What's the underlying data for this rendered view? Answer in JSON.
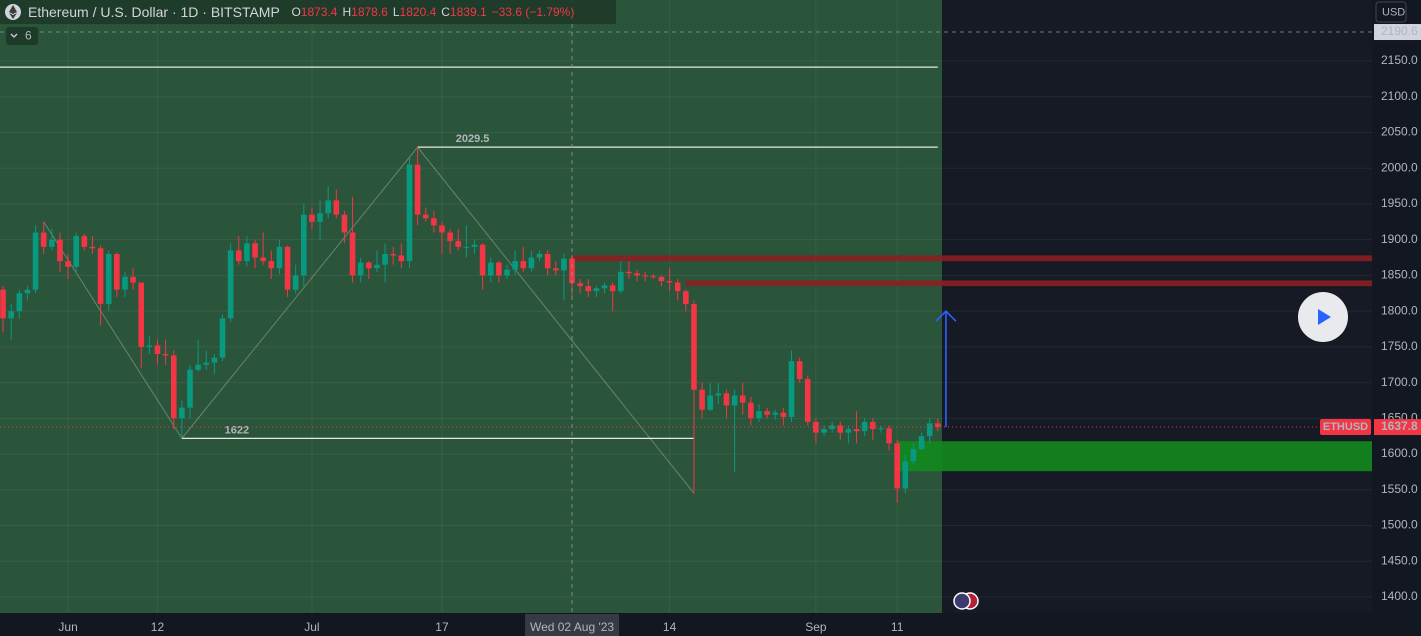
{
  "chart_data": {
    "type": "candlestick",
    "title": "Ethereum / U.S. Dollar · 1D · BITSTAMP",
    "ohlc_labels": [
      "O",
      "H",
      "L",
      "C"
    ],
    "change": "−33.6 (−1.79%)",
    "indicators": 6,
    "currency": "USD",
    "symbol_tag": "ETHUSD",
    "up_color": "#089981",
    "down_color": "#f23645",
    "grid": true,
    "xlim": [
      "2023-05-23T15:00",
      "2023-11-08T10:00"
    ],
    "ylim": [
      1377.6,
      2235.4
    ],
    "yticks": [
      {
        "value": 1400,
        "label": "1400.0"
      },
      {
        "value": 1450,
        "label": "1450.0"
      },
      {
        "value": 1500,
        "label": "1500.0"
      },
      {
        "value": 1550,
        "label": "1550.0"
      },
      {
        "value": 1600,
        "label": "1600.0"
      },
      {
        "value": 1650,
        "label": "1650.0"
      },
      {
        "value": 1700,
        "label": "1700.0"
      },
      {
        "value": 1750,
        "label": "1750.0"
      },
      {
        "value": 1800,
        "label": "1800.0"
      },
      {
        "value": 1850,
        "label": "1850.0"
      },
      {
        "value": 1900,
        "label": "1900.0"
      },
      {
        "value": 1950,
        "label": "1950.0"
      },
      {
        "value": 2000,
        "label": "2000.0"
      },
      {
        "value": 2050,
        "label": "2050.0"
      },
      {
        "value": 2100,
        "label": "2100.0"
      },
      {
        "value": 2150,
        "label": "2150.0"
      }
    ],
    "xticks": [
      {
        "value": "2023-06-01",
        "label": "Jun"
      },
      {
        "value": "2023-06-12",
        "label": "12"
      },
      {
        "value": "2023-07-01",
        "label": "Jul"
      },
      {
        "value": "2023-07-17",
        "label": "17"
      },
      {
        "value": "2023-08-14",
        "label": "14"
      },
      {
        "value": "2023-09-01",
        "label": "Sep"
      },
      {
        "value": "2023-09-11",
        "label": "11"
      }
    ],
    "crosshair": {
      "date": "2023-08-02",
      "date_label": "Wed 02 Aug '23",
      "price": 2190.6
    },
    "lines": [
      {
        "value": 2141.5,
        "from": "2023-05-23T15:00",
        "to": "2023-09-16"
      },
      {
        "value": 2029.5,
        "from": "2023-07-14",
        "to": "2023-09-16",
        "label": 2029.5
      },
      {
        "value": 1622,
        "from": "2023-06-15",
        "to": "2023-08-17",
        "label": 1622
      }
    ],
    "zones": [
      {
        "from": "2023-08-02",
        "top": 1878,
        "bottom": 1870,
        "color": "#8b1f22"
      },
      {
        "from": "2023-08-16",
        "top": 1843,
        "bottom": 1835,
        "color": "#8b1f22"
      },
      {
        "from": "2023-09-11",
        "top": 1618,
        "bottom": 1576,
        "color": "#128a1e"
      }
    ],
    "zigzag": {
      "x": [
        "2023-05-29",
        "2023-06-15",
        "2023-07-14",
        "2023-08-17"
      ],
      "values": [
        1925,
        1622,
        2029.5,
        1545
      ]
    },
    "arrow": {
      "date": "2023-09-17",
      "from": 1637.8,
      "to": 1800,
      "color": "#2962ff"
    },
    "x": [
      "2023-05-24",
      "2023-05-25",
      "2023-05-26",
      "2023-05-27",
      "2023-05-28",
      "2023-05-29",
      "2023-05-30",
      "2023-05-31",
      "2023-06-01",
      "2023-06-02",
      "2023-06-03",
      "2023-06-04",
      "2023-06-05",
      "2023-06-06",
      "2023-06-07",
      "2023-06-08",
      "2023-06-09",
      "2023-06-10",
      "2023-06-11",
      "2023-06-12",
      "2023-06-13",
      "2023-06-14",
      "2023-06-15",
      "2023-06-16",
      "2023-06-17",
      "2023-06-18",
      "2023-06-19",
      "2023-06-20",
      "2023-06-21",
      "2023-06-22",
      "2023-06-23",
      "2023-06-24",
      "2023-06-25",
      "2023-06-26",
      "2023-06-27",
      "2023-06-28",
      "2023-06-29",
      "2023-06-30",
      "2023-07-01",
      "2023-07-02",
      "2023-07-03",
      "2023-07-04",
      "2023-07-05",
      "2023-07-06",
      "2023-07-07",
      "2023-07-08",
      "2023-07-09",
      "2023-07-10",
      "2023-07-11",
      "2023-07-12",
      "2023-07-13",
      "2023-07-14",
      "2023-07-15",
      "2023-07-16",
      "2023-07-17",
      "2023-07-18",
      "2023-07-19",
      "2023-07-20",
      "2023-07-21",
      "2023-07-22",
      "2023-07-23",
      "2023-07-24",
      "2023-07-25",
      "2023-07-26",
      "2023-07-27",
      "2023-07-28",
      "2023-07-29",
      "2023-07-30",
      "2023-07-31",
      "2023-08-01",
      "2023-08-02",
      "2023-08-03",
      "2023-08-04",
      "2023-08-05",
      "2023-08-06",
      "2023-08-07",
      "2023-08-08",
      "2023-08-09",
      "2023-08-10",
      "2023-08-11",
      "2023-08-12",
      "2023-08-13",
      "2023-08-14",
      "2023-08-15",
      "2023-08-16",
      "2023-08-17",
      "2023-08-18",
      "2023-08-19",
      "2023-08-20",
      "2023-08-21",
      "2023-08-22",
      "2023-08-23",
      "2023-08-24",
      "2023-08-25",
      "2023-08-26",
      "2023-08-27",
      "2023-08-28",
      "2023-08-29",
      "2023-08-30",
      "2023-08-31",
      "2023-09-01",
      "2023-09-02",
      "2023-09-03",
      "2023-09-04",
      "2023-09-05",
      "2023-09-06",
      "2023-09-07",
      "2023-09-08",
      "2023-09-09",
      "2023-09-10",
      "2023-09-11",
      "2023-09-12",
      "2023-09-13",
      "2023-09-14",
      "2023-09-15",
      "2023-09-16"
    ],
    "ohlc": [
      [
        1830,
        1835,
        1770,
        1790
      ],
      [
        1790,
        1810,
        1760,
        1800
      ],
      [
        1800,
        1830,
        1790,
        1825
      ],
      [
        1825,
        1835,
        1815,
        1830
      ],
      [
        1830,
        1920,
        1825,
        1910
      ],
      [
        1910,
        1925,
        1880,
        1890
      ],
      [
        1890,
        1915,
        1885,
        1900
      ],
      [
        1900,
        1910,
        1855,
        1870
      ],
      [
        1870,
        1880,
        1845,
        1862
      ],
      [
        1862,
        1910,
        1855,
        1905
      ],
      [
        1905,
        1908,
        1885,
        1890
      ],
      [
        1890,
        1905,
        1880,
        1888
      ],
      [
        1888,
        1892,
        1780,
        1810
      ],
      [
        1810,
        1885,
        1800,
        1880
      ],
      [
        1880,
        1882,
        1820,
        1830
      ],
      [
        1830,
        1855,
        1820,
        1848
      ],
      [
        1848,
        1860,
        1830,
        1840
      ],
      [
        1840,
        1840,
        1720,
        1750
      ],
      [
        1750,
        1765,
        1740,
        1752
      ],
      [
        1752,
        1760,
        1725,
        1740
      ],
      [
        1740,
        1760,
        1725,
        1738
      ],
      [
        1738,
        1745,
        1635,
        1650
      ],
      [
        1650,
        1675,
        1622,
        1665
      ],
      [
        1665,
        1725,
        1650,
        1718
      ],
      [
        1718,
        1760,
        1715,
        1725
      ],
      [
        1725,
        1745,
        1718,
        1728
      ],
      [
        1728,
        1740,
        1712,
        1735
      ],
      [
        1735,
        1795,
        1730,
        1790
      ],
      [
        1790,
        1895,
        1785,
        1885
      ],
      [
        1885,
        1905,
        1865,
        1870
      ],
      [
        1870,
        1905,
        1862,
        1895
      ],
      [
        1895,
        1900,
        1860,
        1875
      ],
      [
        1875,
        1910,
        1865,
        1870
      ],
      [
        1870,
        1885,
        1845,
        1860
      ],
      [
        1860,
        1900,
        1852,
        1890
      ],
      [
        1890,
        1892,
        1820,
        1830
      ],
      [
        1830,
        1865,
        1825,
        1850
      ],
      [
        1850,
        1950,
        1835,
        1935
      ],
      [
        1935,
        1945,
        1915,
        1925
      ],
      [
        1925,
        1955,
        1900,
        1937
      ],
      [
        1937,
        1975,
        1930,
        1955
      ],
      [
        1955,
        1970,
        1930,
        1935
      ],
      [
        1935,
        1940,
        1895,
        1910
      ],
      [
        1910,
        1960,
        1840,
        1850
      ],
      [
        1850,
        1875,
        1840,
        1868
      ],
      [
        1868,
        1870,
        1845,
        1860
      ],
      [
        1860,
        1885,
        1855,
        1865
      ],
      [
        1865,
        1895,
        1840,
        1880
      ],
      [
        1880,
        1890,
        1865,
        1878
      ],
      [
        1878,
        1895,
        1860,
        1870
      ],
      [
        1870,
        2015,
        1860,
        2005
      ],
      [
        2005,
        2029.5,
        1920,
        1935
      ],
      [
        1935,
        1945,
        1925,
        1930
      ],
      [
        1930,
        1940,
        1910,
        1920
      ],
      [
        1920,
        1925,
        1880,
        1910
      ],
      [
        1910,
        1915,
        1880,
        1898
      ],
      [
        1898,
        1915,
        1885,
        1890
      ],
      [
        1890,
        1920,
        1875,
        1890
      ],
      [
        1890,
        1900,
        1880,
        1893
      ],
      [
        1893,
        1895,
        1830,
        1850
      ],
      [
        1850,
        1875,
        1840,
        1868
      ],
      [
        1868,
        1870,
        1840,
        1850
      ],
      [
        1850,
        1865,
        1845,
        1858
      ],
      [
        1858,
        1885,
        1850,
        1870
      ],
      [
        1870,
        1890,
        1855,
        1860
      ],
      [
        1860,
        1885,
        1855,
        1875
      ],
      [
        1875,
        1885,
        1870,
        1880
      ],
      [
        1880,
        1885,
        1850,
        1860
      ],
      [
        1860,
        1870,
        1850,
        1857
      ],
      [
        1857,
        1880,
        1815,
        1873.4
      ],
      [
        1873.4,
        1878.6,
        1820.4,
        1839.1
      ],
      [
        1839.1,
        1845,
        1825,
        1835
      ],
      [
        1835,
        1845,
        1820,
        1828
      ],
      [
        1828,
        1835,
        1820,
        1832
      ],
      [
        1832,
        1840,
        1825,
        1836
      ],
      [
        1836,
        1840,
        1800,
        1828
      ],
      [
        1828,
        1870,
        1825,
        1855
      ],
      [
        1855,
        1870,
        1845,
        1853
      ],
      [
        1853,
        1858,
        1842,
        1850
      ],
      [
        1850,
        1855,
        1842,
        1849
      ],
      [
        1849,
        1852,
        1845,
        1848
      ],
      [
        1848,
        1850,
        1835,
        1842
      ],
      [
        1842,
        1860,
        1828,
        1840
      ],
      [
        1840,
        1845,
        1815,
        1828
      ],
      [
        1828,
        1830,
        1800,
        1810
      ],
      [
        1810,
        1815,
        1545,
        1690
      ],
      [
        1690,
        1700,
        1650,
        1662
      ],
      [
        1662,
        1700,
        1660,
        1682
      ],
      [
        1682,
        1700,
        1670,
        1685
      ],
      [
        1685,
        1690,
        1650,
        1668
      ],
      [
        1668,
        1690,
        1575,
        1682
      ],
      [
        1682,
        1700,
        1655,
        1672
      ],
      [
        1672,
        1680,
        1640,
        1650
      ],
      [
        1650,
        1670,
        1645,
        1660
      ],
      [
        1660,
        1665,
        1650,
        1655
      ],
      [
        1655,
        1662,
        1648,
        1658
      ],
      [
        1658,
        1665,
        1640,
        1652
      ],
      [
        1652,
        1745,
        1645,
        1730
      ],
      [
        1730,
        1735,
        1700,
        1705
      ],
      [
        1705,
        1710,
        1640,
        1645
      ],
      [
        1645,
        1650,
        1615,
        1630
      ],
      [
        1630,
        1640,
        1625,
        1635
      ],
      [
        1635,
        1645,
        1630,
        1640
      ],
      [
        1640,
        1645,
        1620,
        1630
      ],
      [
        1630,
        1640,
        1615,
        1635
      ],
      [
        1635,
        1660,
        1615,
        1632
      ],
      [
        1632,
        1650,
        1625,
        1645
      ],
      [
        1645,
        1650,
        1620,
        1635
      ],
      [
        1635,
        1640,
        1630,
        1636
      ],
      [
        1636,
        1640,
        1605,
        1615
      ],
      [
        1615,
        1620,
        1532,
        1552
      ],
      [
        1552,
        1600,
        1545,
        1590
      ],
      [
        1590,
        1615,
        1585,
        1607
      ],
      [
        1607,
        1630,
        1605,
        1625
      ],
      [
        1625,
        1650,
        1615,
        1643
      ],
      [
        1643,
        1650,
        1632,
        1637.8
      ]
    ]
  }
}
